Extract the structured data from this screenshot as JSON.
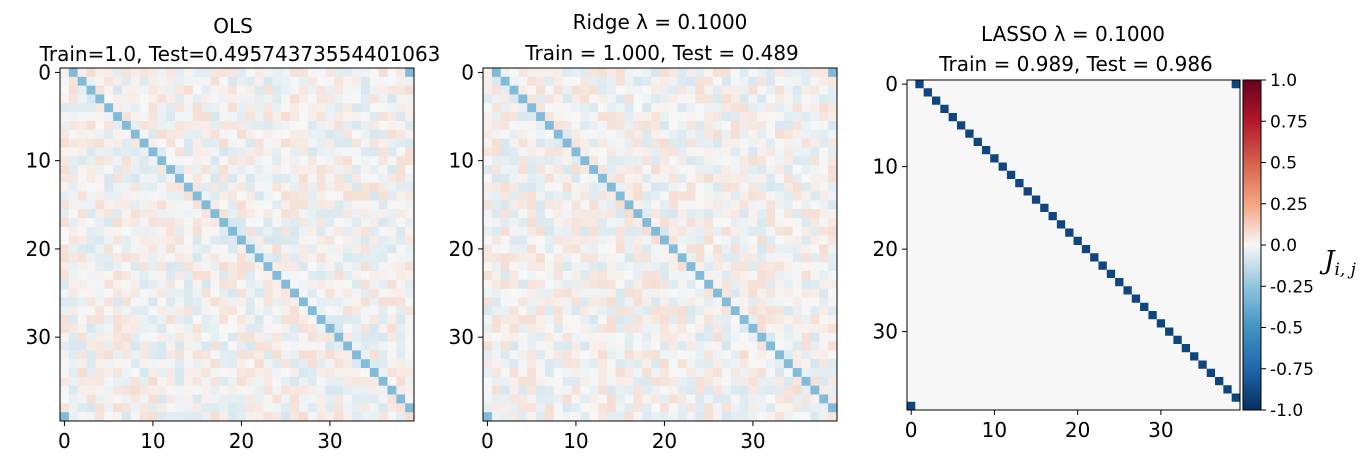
{
  "chart_data": [
    {
      "type": "heatmap",
      "title_line1": "OLS",
      "title_line2": "Train=1.0, Test=0.4957437355440106​3",
      "size": 40,
      "diagonal_value": -0.3,
      "wrap_corner_value": -0.3,
      "noise_amplitude": 0.08,
      "x_ticks": [
        0,
        10,
        20,
        30
      ],
      "y_ticks": [
        0,
        10,
        20,
        30
      ],
      "vmin": -1.0,
      "vmax": 1.0
    },
    {
      "type": "heatmap",
      "title_line1": "Ridge λ = 0.1000",
      "title_line2": "Train = 1.000, Test = 0.489",
      "size": 40,
      "diagonal_value": -0.3,
      "wrap_corner_value": -0.3,
      "noise_amplitude": 0.08,
      "x_ticks": [
        0,
        10,
        20,
        30
      ],
      "y_ticks": [
        0,
        10,
        20,
        30
      ],
      "vmin": -1.0,
      "vmax": 1.0
    },
    {
      "type": "heatmap",
      "title_line1": "LASSO λ = 0.1000",
      "title_line2": "Train = 0.989, Test = 0.986",
      "size": 40,
      "diagonal_value": -0.9,
      "wrap_corner_value": -0.9,
      "noise_amplitude": 0.0,
      "x_ticks": [
        0,
        10,
        20,
        30
      ],
      "y_ticks": [
        0,
        10,
        20,
        30
      ],
      "vmin": -1.0,
      "vmax": 1.0,
      "colorbar": {
        "ticks": [
          "1.0",
          "0.75",
          "0.5",
          "0.25",
          "0.0",
          "-0.25",
          "-0.5",
          "-0.75",
          "-1.0"
        ],
        "tick_values": [
          1.0,
          0.75,
          0.5,
          0.25,
          0.0,
          -0.25,
          -0.5,
          -0.75,
          -1.0
        ],
        "label_main": "J",
        "label_sub": "i, j",
        "colormap": "RdBu"
      }
    }
  ]
}
